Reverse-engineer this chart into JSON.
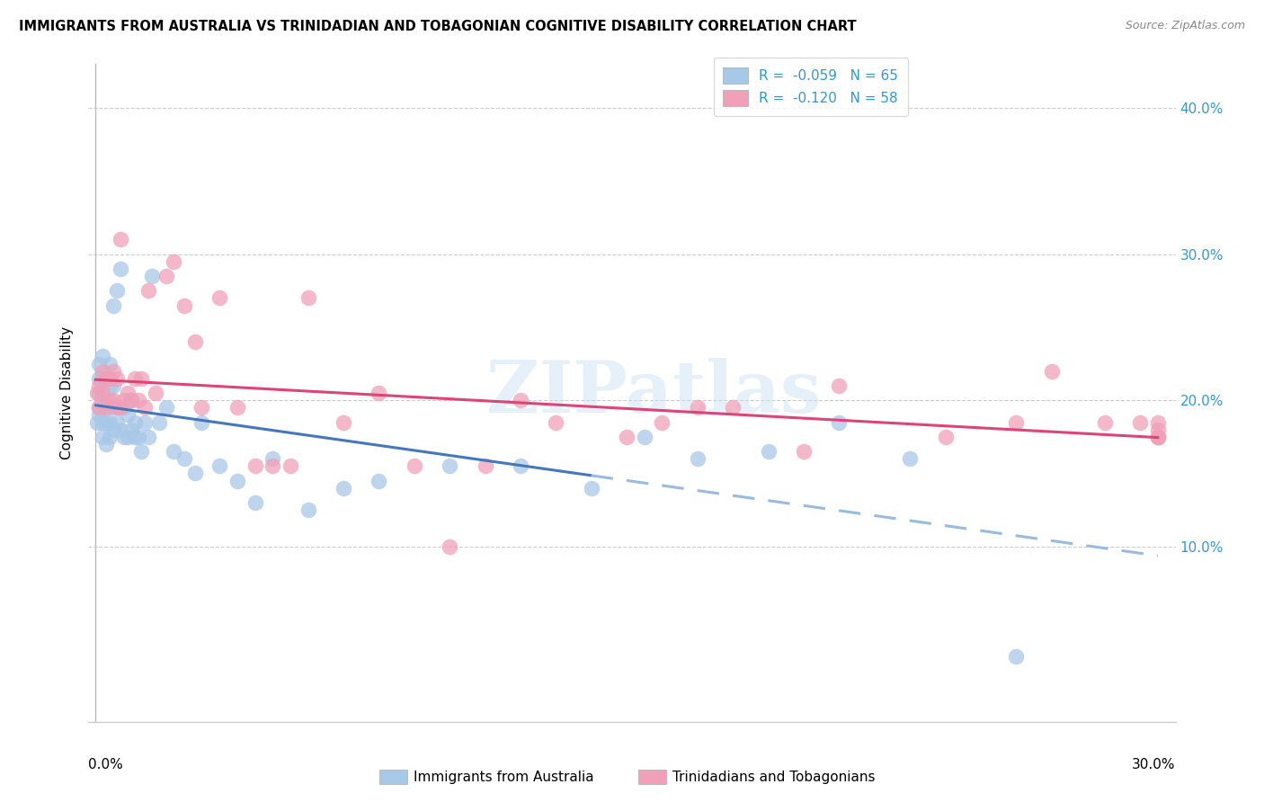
{
  "title": "IMMIGRANTS FROM AUSTRALIA VS TRINIDADIAN AND TOBAGONIAN COGNITIVE DISABILITY CORRELATION CHART",
  "source": "Source: ZipAtlas.com",
  "ylabel": "Cognitive Disability",
  "legend_label1": "Immigrants from Australia",
  "legend_label2": "Trinidadians and Tobagonians",
  "R1": -0.059,
  "N1": 65,
  "R2": -0.12,
  "N2": 58,
  "color_blue": "#a8c8e8",
  "color_blue_line": "#4477bb",
  "color_blue_dash": "#99bbdd",
  "color_pink": "#f0a0b8",
  "color_pink_line": "#dd4477",
  "xlim_min": -0.002,
  "xlim_max": 0.305,
  "ylim_min": -0.02,
  "ylim_max": 0.43,
  "yticks": [
    0.1,
    0.2,
    0.3,
    0.4
  ],
  "watermark": "ZIPatlas",
  "blue_scatter_x": [
    0.0005,
    0.001,
    0.001,
    0.001,
    0.001,
    0.001,
    0.002,
    0.002,
    0.002,
    0.002,
    0.002,
    0.002,
    0.003,
    0.003,
    0.003,
    0.003,
    0.004,
    0.004,
    0.004,
    0.004,
    0.004,
    0.005,
    0.005,
    0.005,
    0.005,
    0.006,
    0.006,
    0.007,
    0.007,
    0.007,
    0.008,
    0.008,
    0.009,
    0.009,
    0.01,
    0.01,
    0.011,
    0.011,
    0.012,
    0.013,
    0.014,
    0.015,
    0.016,
    0.018,
    0.02,
    0.022,
    0.025,
    0.028,
    0.03,
    0.035,
    0.04,
    0.045,
    0.05,
    0.06,
    0.07,
    0.08,
    0.1,
    0.12,
    0.14,
    0.155,
    0.17,
    0.19,
    0.21,
    0.23,
    0.26
  ],
  "blue_scatter_y": [
    0.185,
    0.19,
    0.195,
    0.205,
    0.215,
    0.225,
    0.175,
    0.185,
    0.195,
    0.205,
    0.215,
    0.23,
    0.17,
    0.185,
    0.2,
    0.215,
    0.175,
    0.185,
    0.195,
    0.21,
    0.225,
    0.18,
    0.195,
    0.21,
    0.265,
    0.185,
    0.275,
    0.18,
    0.195,
    0.29,
    0.175,
    0.195,
    0.175,
    0.19,
    0.18,
    0.2,
    0.175,
    0.185,
    0.175,
    0.165,
    0.185,
    0.175,
    0.285,
    0.185,
    0.195,
    0.165,
    0.16,
    0.15,
    0.185,
    0.155,
    0.145,
    0.13,
    0.16,
    0.125,
    0.14,
    0.145,
    0.155,
    0.155,
    0.14,
    0.175,
    0.16,
    0.165,
    0.185,
    0.16,
    0.025
  ],
  "pink_scatter_x": [
    0.0005,
    0.001,
    0.001,
    0.002,
    0.002,
    0.003,
    0.003,
    0.004,
    0.004,
    0.005,
    0.005,
    0.006,
    0.006,
    0.007,
    0.007,
    0.008,
    0.009,
    0.01,
    0.011,
    0.012,
    0.013,
    0.014,
    0.015,
    0.017,
    0.02,
    0.022,
    0.025,
    0.028,
    0.03,
    0.035,
    0.04,
    0.045,
    0.05,
    0.055,
    0.06,
    0.07,
    0.08,
    0.09,
    0.1,
    0.11,
    0.12,
    0.13,
    0.15,
    0.16,
    0.17,
    0.18,
    0.2,
    0.21,
    0.24,
    0.26,
    0.27,
    0.285,
    0.295,
    0.3,
    0.3,
    0.3,
    0.3,
    0.3
  ],
  "pink_scatter_y": [
    0.205,
    0.195,
    0.21,
    0.205,
    0.22,
    0.195,
    0.215,
    0.2,
    0.215,
    0.2,
    0.22,
    0.195,
    0.215,
    0.195,
    0.31,
    0.2,
    0.205,
    0.2,
    0.215,
    0.2,
    0.215,
    0.195,
    0.275,
    0.205,
    0.285,
    0.295,
    0.265,
    0.24,
    0.195,
    0.27,
    0.195,
    0.155,
    0.155,
    0.155,
    0.27,
    0.185,
    0.205,
    0.155,
    0.1,
    0.155,
    0.2,
    0.185,
    0.175,
    0.185,
    0.195,
    0.195,
    0.165,
    0.21,
    0.175,
    0.185,
    0.22,
    0.185,
    0.185,
    0.175,
    0.185,
    0.18,
    0.175,
    0.175
  ]
}
